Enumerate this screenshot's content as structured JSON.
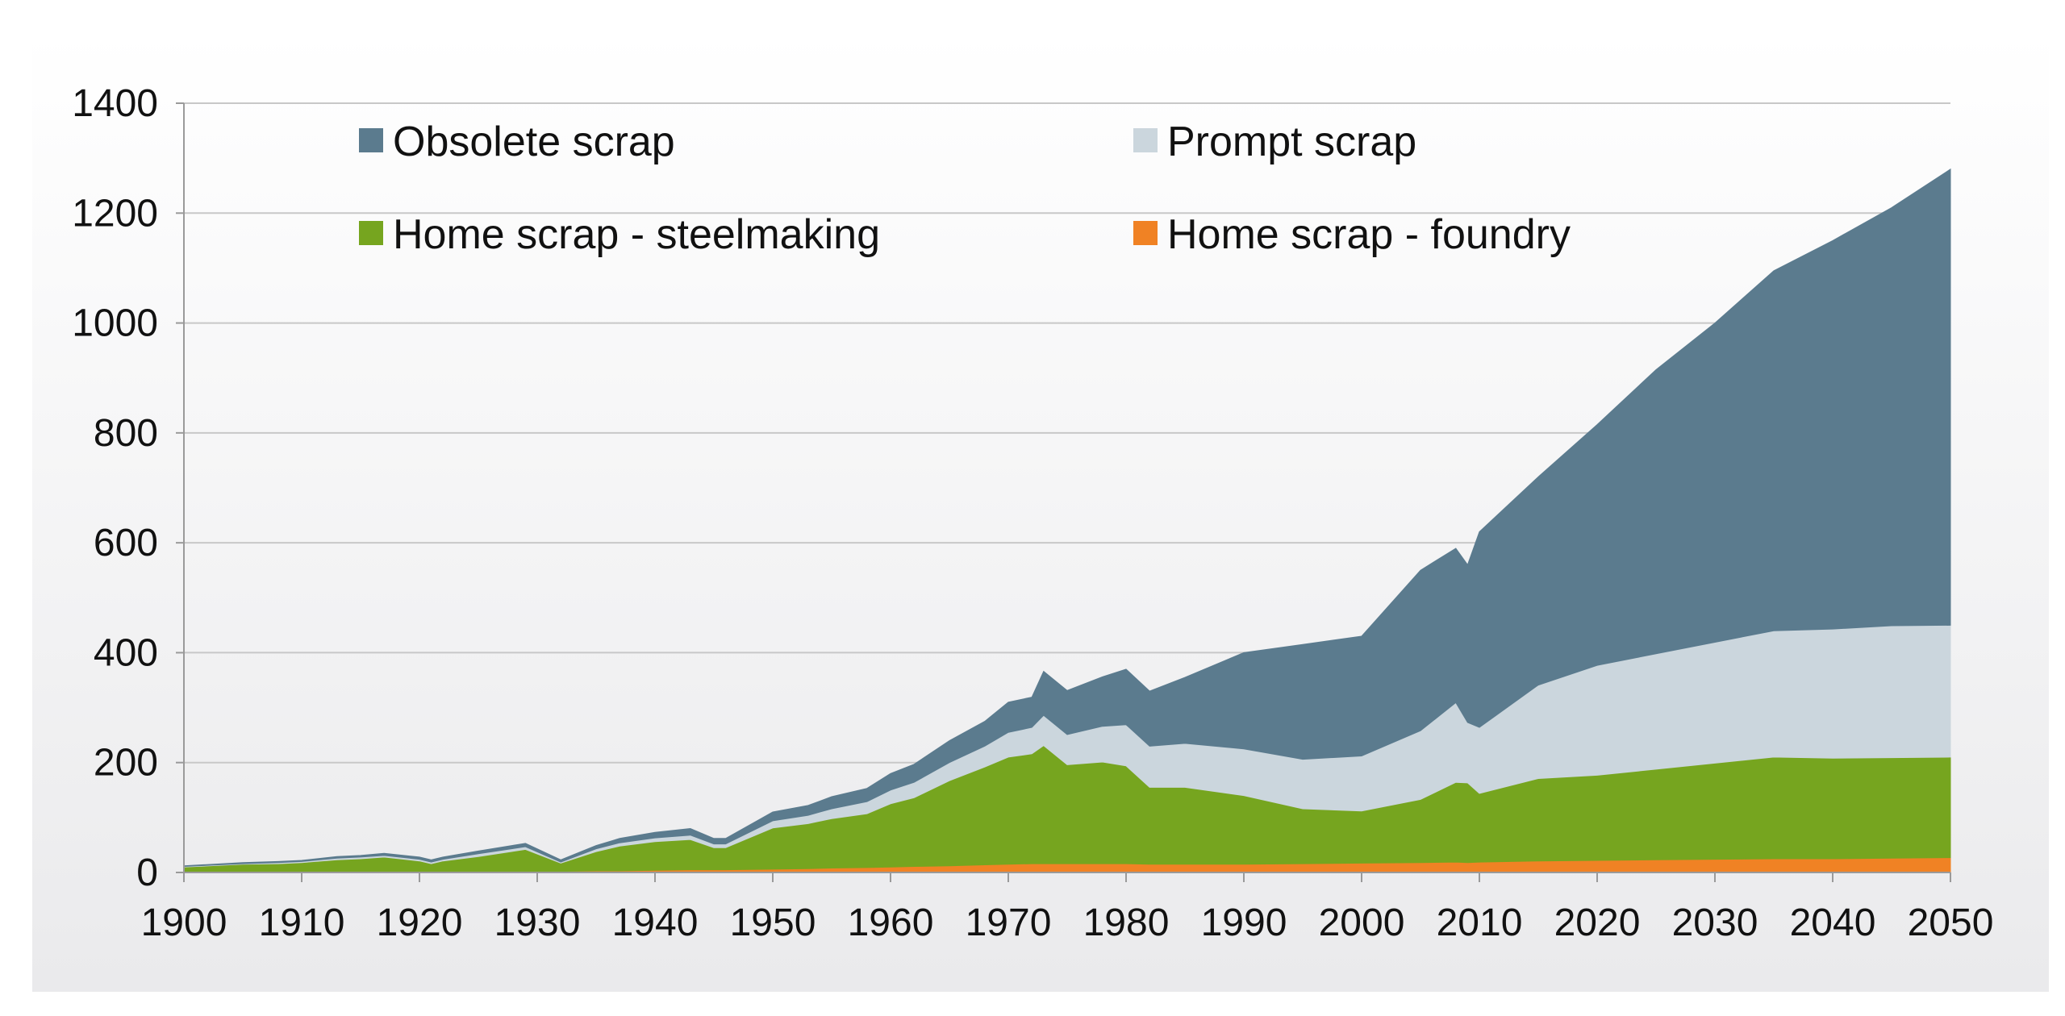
{
  "chart_data": {
    "type": "area",
    "stacked": true,
    "title": "",
    "xlabel": "",
    "ylabel": "",
    "xlim": [
      1900,
      2050
    ],
    "ylim": [
      0,
      1400
    ],
    "x_ticks": [
      1900,
      1910,
      1920,
      1930,
      1940,
      1950,
      1960,
      1970,
      1980,
      1990,
      2000,
      2010,
      2020,
      2030,
      2040,
      2050
    ],
    "y_ticks": [
      0,
      200,
      400,
      600,
      800,
      1000,
      1200,
      1400
    ],
    "grid": "horizontal",
    "legend_position": "top",
    "x": [
      1900,
      1905,
      1908,
      1910,
      1913,
      1915,
      1917,
      1920,
      1921,
      1922,
      1925,
      1929,
      1932,
      1935,
      1937,
      1940,
      1943,
      1945,
      1946,
      1950,
      1953,
      1955,
      1958,
      1960,
      1962,
      1965,
      1968,
      1970,
      1972,
      1973,
      1975,
      1978,
      1980,
      1982,
      1985,
      1990,
      1995,
      2000,
      2005,
      2008,
      2009,
      2010,
      2015,
      2020,
      2025,
      2030,
      2035,
      2040,
      2045,
      2050
    ],
    "series": [
      {
        "name": "Home scrap - foundry",
        "color": "#f08224",
        "values": [
          0,
          0,
          0,
          0,
          1,
          1,
          1,
          1,
          1,
          1,
          1,
          2,
          2,
          3,
          3,
          4,
          5,
          5,
          5,
          6,
          7,
          8,
          9,
          10,
          11,
          12,
          14,
          15,
          16,
          16,
          16,
          16,
          16,
          15,
          15,
          15,
          16,
          17,
          18,
          19,
          18,
          19,
          21,
          22,
          23,
          24,
          25,
          25,
          26,
          27
        ]
      },
      {
        "name": "Home scrap - steelmaking",
        "color": "#76a51f",
        "values": [
          10,
          15,
          16,
          18,
          22,
          24,
          27,
          20,
          15,
          20,
          28,
          40,
          15,
          35,
          45,
          52,
          55,
          40,
          40,
          75,
          82,
          90,
          98,
          115,
          125,
          155,
          178,
          195,
          200,
          215,
          180,
          185,
          178,
          140,
          140,
          125,
          100,
          95,
          115,
          145,
          145,
          125,
          150,
          155,
          165,
          175,
          185,
          183,
          183,
          183
        ]
      },
      {
        "name": "Prompt scrap",
        "color": "#cbd6dd",
        "values": [
          1,
          1,
          2,
          2,
          3,
          3,
          3,
          3,
          3,
          3,
          5,
          5,
          2,
          5,
          6,
          7,
          8,
          7,
          7,
          13,
          15,
          18,
          22,
          25,
          28,
          33,
          38,
          45,
          48,
          55,
          55,
          65,
          75,
          75,
          80,
          85,
          90,
          100,
          125,
          145,
          110,
          120,
          170,
          200,
          210,
          220,
          230,
          235,
          240,
          240
        ]
      },
      {
        "name": "Obsolete scrap",
        "color": "#5b7b8e",
        "values": [
          1,
          2,
          2,
          2,
          3,
          3,
          4,
          4,
          4,
          4,
          5,
          6,
          4,
          6,
          8,
          10,
          12,
          10,
          10,
          16,
          18,
          22,
          24,
          30,
          33,
          40,
          45,
          55,
          55,
          80,
          80,
          90,
          101,
          100,
          120,
          175,
          209,
          218,
          292,
          281,
          287,
          356,
          379,
          438,
          517,
          581,
          655,
          707,
          761,
          830
        ]
      }
    ]
  }
}
